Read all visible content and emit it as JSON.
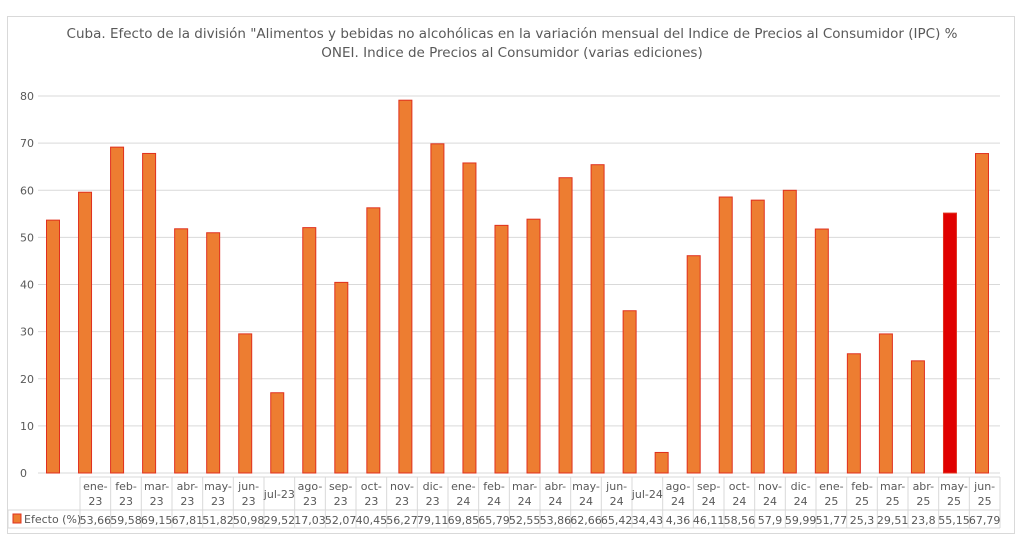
{
  "chart_data": {
    "type": "bar",
    "title": "Cuba. Efecto de la división \"Alimentos y bebidas no alcohólicas en la variación mensual del Indice de Precios al Consumidor (IPC) %",
    "subtitle": "ONEI. Indice de Precios al Consumidor (varias ediciones)",
    "xlabel": "",
    "ylabel": "",
    "ylim": [
      0,
      80
    ],
    "yticks": [
      0,
      10,
      20,
      30,
      40,
      50,
      60,
      70,
      80
    ],
    "grid": true,
    "legend_placement": "bottom-left (data table)",
    "series_name": "Efecto (%)",
    "categories": [
      "ene-23",
      "feb-23",
      "mar-23",
      "abr-23",
      "may-23",
      "jun-23",
      "jul-23",
      "ago-23",
      "sep-23",
      "oct-23",
      "nov-23",
      "dic-23",
      "ene-24",
      "feb-24",
      "mar-24",
      "abr-24",
      "may-24",
      "jun-24",
      "jul-24",
      "ago-24",
      "sep-24",
      "oct-24",
      "nov-24",
      "dic-24",
      "ene-25",
      "feb-25",
      "mar-25",
      "abr-25",
      "may-25",
      "jun-25"
    ],
    "values": [
      53.66,
      59.58,
      69.15,
      67.81,
      51.82,
      50.98,
      29.52,
      17.03,
      52.07,
      40.45,
      56.27,
      79.11,
      69.85,
      65.79,
      52.55,
      53.86,
      62.66,
      65.42,
      34.43,
      4.36,
      46.11,
      58.56,
      57.9,
      59.99,
      51.77,
      25.3,
      29.51,
      23.8,
      55.15,
      67.79
    ],
    "value_labels": [
      "53,66",
      "59,58",
      "69,15",
      "67,81",
      "51,82",
      "50,98",
      "29,52",
      "17,03",
      "52,07",
      "40,45",
      "56,27",
      "79,11",
      "69,85",
      "65,79",
      "52,55",
      "53,86",
      "62,66",
      "65,42",
      "34,43",
      "4,36",
      "46,11",
      "58,56",
      "57,9",
      "59,99",
      "51,77",
      "25,3",
      "29,51",
      "23,8",
      "55,15",
      "67,79"
    ],
    "highlight_index": 28,
    "colors": {
      "bar": "#ed7d31",
      "bar_edge": "#e0301e",
      "highlight": "#e00000",
      "grid": "#d9d9d9",
      "text": "#595959"
    }
  }
}
